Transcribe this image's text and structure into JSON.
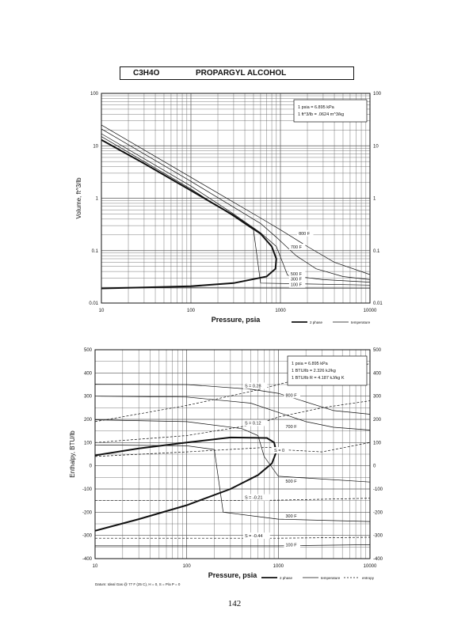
{
  "header": {
    "formula": "C3H4O",
    "name": "PROPARGYL ALCOHOL"
  },
  "page_number": "142",
  "chart_data": [
    {
      "type": "line",
      "xscale": "log",
      "yscale": "log",
      "xlabel": "Pressure,  psia",
      "ylabel": "Volume, ft^3/lb",
      "xlim": [
        10,
        10000
      ],
      "ylim": [
        0.01,
        100
      ],
      "x_ticks": [
        "10",
        "100",
        "1000",
        "10000"
      ],
      "y_ticks": [
        "0.01",
        "0.1",
        "1",
        "10",
        "100"
      ],
      "grid": true,
      "note_lines": [
        "1 psia  =  6.895 kPa",
        "1 ft^3/lb  =  .0624 m^3/kg"
      ],
      "legend": [
        {
          "label": "2 phase",
          "style": "thick"
        },
        {
          "label": "temperature",
          "style": "thin"
        }
      ],
      "series": [
        {
          "kind": "2phase",
          "points": [
            [
              10,
              13
            ],
            [
              30,
              4.6
            ],
            [
              100,
              1.4
            ],
            [
              300,
              0.47
            ],
            [
              600,
              0.21
            ],
            [
              800,
              0.12
            ],
            [
              900,
              0.07
            ],
            [
              880,
              0.045
            ],
            [
              700,
              0.032
            ],
            [
              300,
              0.024
            ],
            [
              100,
              0.021
            ],
            [
              30,
              0.0198
            ],
            [
              10,
              0.019
            ]
          ]
        },
        {
          "kind": "isotherm",
          "label": "800 F",
          "points": [
            [
              10,
              25
            ],
            [
              100,
              2.5
            ],
            [
              600,
              0.42
            ],
            [
              1000,
              0.25
            ],
            [
              2000,
              0.12
            ],
            [
              4000,
              0.06
            ],
            [
              10000,
              0.035
            ]
          ]
        },
        {
          "kind": "isotherm",
          "label": "700 F",
          "points": [
            [
              10,
              21
            ],
            [
              100,
              2.1
            ],
            [
              600,
              0.33
            ],
            [
              900,
              0.18
            ],
            [
              1500,
              0.08
            ],
            [
              2500,
              0.045
            ],
            [
              5000,
              0.032
            ],
            [
              10000,
              0.028
            ]
          ]
        },
        {
          "kind": "isotherm",
          "label": "500 F",
          "points": [
            [
              10,
              17
            ],
            [
              100,
              1.7
            ],
            [
              300,
              0.5
            ],
            [
              600,
              0.22
            ],
            [
              900,
              0.12
            ],
            [
              1100,
              0.05
            ],
            [
              1200,
              0.034
            ],
            [
              3000,
              0.028
            ],
            [
              10000,
              0.025
            ]
          ]
        },
        {
          "kind": "isotherm",
          "label": "300 F",
          "points": [
            [
              10,
              15
            ],
            [
              100,
              1.5
            ],
            [
              300,
              0.45
            ],
            [
              500,
              0.25
            ],
            [
              600,
              0.024
            ],
            [
              10000,
              0.022
            ]
          ]
        },
        {
          "kind": "isotherm",
          "label": "100 F",
          "points": [
            [
              10,
              0.0195
            ],
            [
              10000,
              0.0192
            ]
          ]
        }
      ],
      "annotations": [
        {
          "text": "800 F",
          "x": 1600,
          "y": 0.2
        },
        {
          "text": "700 F",
          "x": 1300,
          "y": 0.11
        },
        {
          "text": "500 F",
          "x": 1300,
          "y": 0.034
        },
        {
          "text": "300 F",
          "x": 1300,
          "y": 0.027
        },
        {
          "text": "100 F",
          "x": 1300,
          "y": 0.021
        }
      ]
    },
    {
      "type": "line",
      "xscale": "log",
      "yscale": "linear",
      "xlabel": "Pressure,  psia",
      "ylabel": "Enthalpy, BTU/lb",
      "xlim": [
        10,
        10000
      ],
      "ylim": [
        -400,
        500
      ],
      "x_ticks": [
        "10",
        "100",
        "1000",
        "10000"
      ],
      "y_ticks": [
        "-400",
        "-300",
        "-200",
        "-100",
        "0",
        "100",
        "200",
        "300",
        "400",
        "500"
      ],
      "grid": true,
      "note_lines": [
        "1 psia  =  6.895 kPa",
        "1 BTU/lb  =  2.326 kJ/kg",
        "1 BTU/lb R  =  4.187 kJ/kg K"
      ],
      "footnote": "Datum: Ideal Gas @ 77 F (25 C),  H = 0,  S = P/a P = 0",
      "legend": [
        {
          "label": "2 phase",
          "style": "thick"
        },
        {
          "label": "temperature",
          "style": "thin"
        },
        {
          "label": "entropy",
          "style": "dashed"
        }
      ],
      "series": [
        {
          "kind": "2phase",
          "points": [
            [
              10,
              -280
            ],
            [
              30,
              -230
            ],
            [
              100,
              -170
            ],
            [
              300,
              -100
            ],
            [
              600,
              -40
            ],
            [
              850,
              10
            ],
            [
              950,
              60
            ],
            [
              900,
              100
            ],
            [
              750,
              120
            ],
            [
              300,
              122
            ],
            [
              100,
              100
            ],
            [
              30,
              75
            ],
            [
              10,
              45
            ]
          ]
        },
        {
          "kind": "isotherm",
          "label": "800 F",
          "points": [
            [
              10,
              352
            ],
            [
              100,
              350
            ],
            [
              500,
              330
            ],
            [
              1000,
              312
            ],
            [
              2000,
              275
            ],
            [
              4000,
              238
            ],
            [
              10000,
              222
            ]
          ]
        },
        {
          "kind": "isotherm",
          "label": "700 F",
          "points": [
            [
              10,
              300
            ],
            [
              100,
              296
            ],
            [
              500,
              270
            ],
            [
              1000,
              230
            ],
            [
              2000,
              190
            ],
            [
              4000,
              166
            ],
            [
              10000,
              154
            ]
          ]
        },
        {
          "kind": "isotherm",
          "label": "500 F",
          "points": [
            [
              10,
              198
            ],
            [
              100,
              190
            ],
            [
              400,
              160
            ],
            [
              600,
              130
            ],
            [
              700,
              40
            ],
            [
              1000,
              -45
            ],
            [
              10000,
              -70
            ]
          ]
        },
        {
          "kind": "isotherm",
          "label": "300 F",
          "points": [
            [
              10,
              90
            ],
            [
              100,
              86
            ],
            [
              200,
              70
            ],
            [
              250,
              -200
            ],
            [
              1000,
              -230
            ],
            [
              10000,
              -240
            ]
          ]
        },
        {
          "kind": "isotherm",
          "label": "100 F",
          "points": [
            [
              10,
              -345
            ],
            [
              1000,
              -345
            ],
            [
              10000,
              -340
            ]
          ]
        },
        {
          "kind": "entropy",
          "label": "S = 0.28",
          "points": [
            [
              10,
              190
            ],
            [
              100,
              260
            ],
            [
              500,
              320
            ],
            [
              1000,
              350
            ],
            [
              3000,
              400
            ],
            [
              10000,
              440
            ]
          ]
        },
        {
          "kind": "entropy",
          "label": "S = 0.12",
          "points": [
            [
              10,
              100
            ],
            [
              100,
              130
            ],
            [
              600,
              180
            ],
            [
              1000,
              210
            ],
            [
              3000,
              250
            ],
            [
              10000,
              280
            ]
          ]
        },
        {
          "kind": "entropy",
          "label": "S = 0",
          "points": [
            [
              10,
              40
            ],
            [
              100,
              60
            ],
            [
              800,
              80
            ],
            [
              1000,
              70
            ],
            [
              3000,
              60
            ],
            [
              10000,
              100
            ]
          ]
        },
        {
          "kind": "entropy",
          "label": "S = -0.21",
          "points": [
            [
              10,
              -150
            ],
            [
              300,
              -150
            ],
            [
              1000,
              -148
            ],
            [
              10000,
              -140
            ]
          ]
        },
        {
          "kind": "entropy",
          "label": "S = -0.44",
          "points": [
            [
              10,
              -312
            ],
            [
              1000,
              -312
            ],
            [
              10000,
              -308
            ]
          ]
        }
      ],
      "annotations": [
        {
          "text": "S = 0.28",
          "x": 430,
          "y": 338
        },
        {
          "text": "800 F",
          "x": 1200,
          "y": 298
        },
        {
          "text": "S = 0.12",
          "x": 430,
          "y": 178
        },
        {
          "text": "700 F",
          "x": 1200,
          "y": 163
        },
        {
          "text": "S = 0",
          "x": 900,
          "y": 60
        },
        {
          "text": "500 F",
          "x": 1200,
          "y": -73
        },
        {
          "text": "S = -0.21",
          "x": 430,
          "y": -143
        },
        {
          "text": "300 F",
          "x": 1200,
          "y": -223
        },
        {
          "text": "S = -0.44",
          "x": 430,
          "y": -308
        },
        {
          "text": "100 F",
          "x": 1200,
          "y": -347
        }
      ]
    }
  ]
}
